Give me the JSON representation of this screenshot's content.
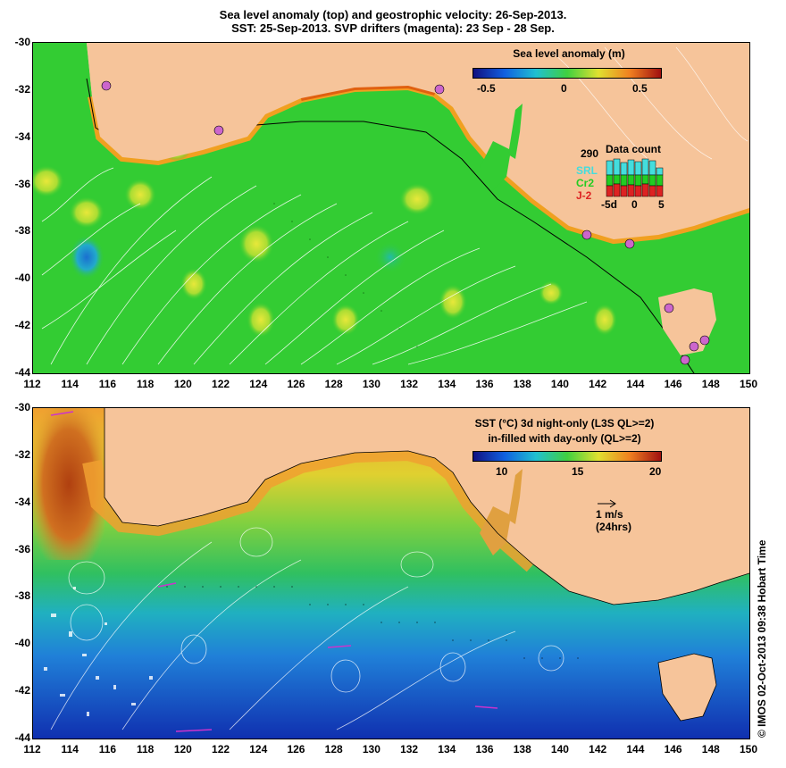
{
  "title": {
    "line1": "Sea level anomaly (top) and geostrophic velocity: 26-Sep-2013.",
    "line2": "SST: 25-Sep-2013. SVP drifters (magenta): 23 Sep - 28 Sep."
  },
  "axes": {
    "lon_ticks": [
      "112",
      "114",
      "116",
      "118",
      "120",
      "122",
      "124",
      "126",
      "128",
      "130",
      "132",
      "134",
      "136",
      "138",
      "140",
      "142",
      "144",
      "146",
      "148",
      "150"
    ],
    "lat_ticks": [
      "-30",
      "-32",
      "-34",
      "-36",
      "-38",
      "-40",
      "-42",
      "-44"
    ],
    "lon_range": [
      112,
      150
    ],
    "lat_range": [
      -44,
      -30
    ]
  },
  "top_panel": {
    "colorbar_title": "Sea level anomaly (m)",
    "colorbar_ticks": [
      "-0.5",
      "0",
      "0.5"
    ],
    "data_count": {
      "title": "Data count",
      "max_label": "290",
      "series": [
        {
          "name": "SRL",
          "color": "#44dddd"
        },
        {
          "name": "Cr2",
          "color": "#22cc22"
        },
        {
          "name": "J-2",
          "color": "#dd2222"
        }
      ],
      "x_ticks": [
        "-5d",
        "0",
        "5"
      ]
    }
  },
  "bottom_panel": {
    "colorbar_title_1": "SST (°C)  3d night-only (L3S QL>=2)",
    "colorbar_title_2": "in-filled with day-only (QL>=2)",
    "colorbar_ticks": [
      "10",
      "15",
      "20"
    ],
    "scale_label_1": "1 m/s",
    "scale_label_2": "(24hrs)"
  },
  "credit": "© IMOS 02-Oct-2013 09:38 Hobart Time",
  "colors": {
    "land": "#f6c49a",
    "drifter": "#cc33cc",
    "sla_mid": "#33cc33",
    "sst_warm": "#f0a030",
    "sst_cold": "#1040c0"
  }
}
